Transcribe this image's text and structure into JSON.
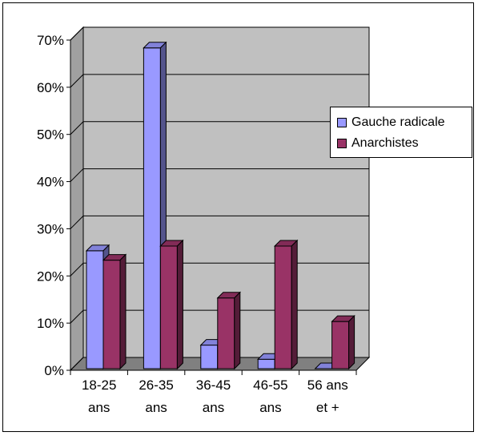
{
  "chart_data": {
    "type": "bar",
    "title": "",
    "xlabel": "",
    "ylabel": "",
    "categories": [
      [
        "18-25",
        "ans"
      ],
      [
        "26-35",
        "ans"
      ],
      [
        "36-45",
        "ans"
      ],
      [
        "46-55",
        "ans"
      ],
      [
        "56 ans",
        "et +"
      ]
    ],
    "series": [
      {
        "name": "Gauche radicale",
        "values": [
          25,
          68,
          5,
          2,
          0
        ],
        "color": "#9999FF"
      },
      {
        "name": "Anarchistes",
        "values": [
          23,
          26,
          15,
          26,
          10
        ],
        "color": "#993366"
      }
    ],
    "ylim": [
      0,
      70
    ],
    "yticks": [
      0,
      10,
      20,
      30,
      40,
      50,
      60,
      70
    ],
    "ytick_labels": [
      "0%",
      "10%",
      "20%",
      "30%",
      "40%",
      "50%",
      "60%",
      "70%"
    ],
    "grid": true,
    "legend_position": "right",
    "plot_background": "#C0C0C0",
    "three_d": true
  }
}
